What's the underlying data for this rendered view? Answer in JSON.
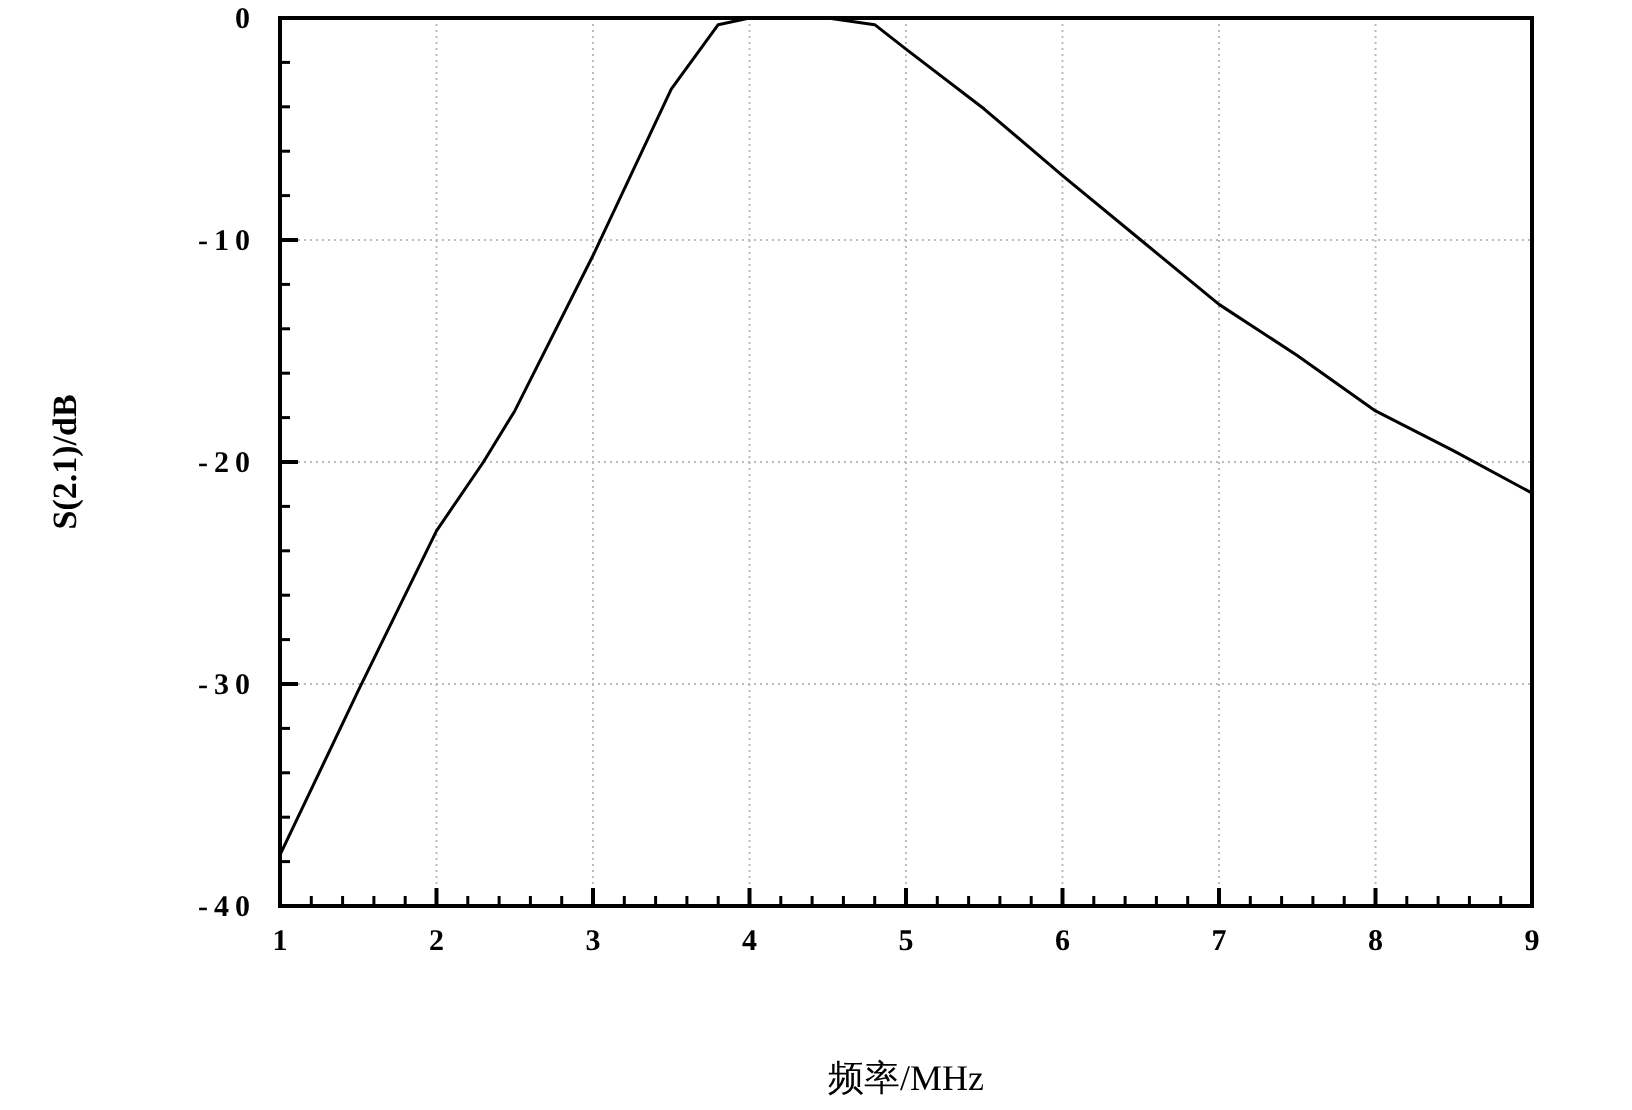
{
  "chart_data": {
    "type": "line",
    "xlabel": "频率/MHz",
    "ylabel": "S(2.1)/dB",
    "x": [
      1,
      1.5,
      2,
      2.3,
      2.5,
      3,
      3.5,
      3.8,
      4,
      4.5,
      4.8,
      5,
      5.5,
      6,
      6.5,
      7,
      7.5,
      8,
      8.5,
      9
    ],
    "series": [
      {
        "color": "#000000",
        "values": [
          -37.7,
          -30.3,
          -23.1,
          -20,
          -17.7,
          -10.7,
          -3.2,
          -0.3,
          0,
          0,
          -0.3,
          -1.4,
          -4.1,
          -7.1,
          -10,
          -12.9,
          -15.2,
          -17.7,
          -19.5,
          -21.4
        ]
      }
    ],
    "xlim": [
      1,
      9
    ],
    "ylim": [
      -40,
      0
    ],
    "xticks": [
      1,
      2,
      3,
      4,
      5,
      6,
      7,
      8,
      9
    ],
    "yticks": [
      -40,
      -30,
      -20,
      -10,
      0
    ],
    "grid": true
  }
}
